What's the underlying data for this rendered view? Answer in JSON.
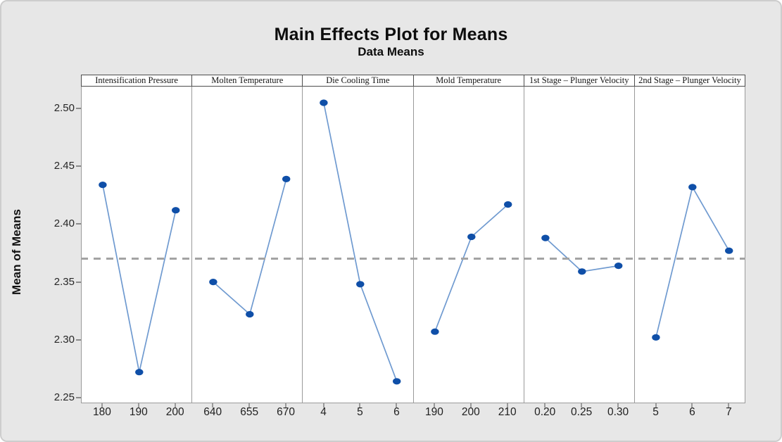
{
  "chart_data": {
    "type": "line",
    "title": "Main Effects Plot for Means",
    "subtitle": "Data Means",
    "ylabel": "Mean of Means",
    "ylim": [
      2.245,
      2.519
    ],
    "yticks": [
      {
        "label": "2.50",
        "value": 2.5
      },
      {
        "label": "2.45",
        "value": 2.45
      },
      {
        "label": "2.40",
        "value": 2.4
      },
      {
        "label": "2.35",
        "value": 2.35
      },
      {
        "label": "2.30",
        "value": 2.3
      },
      {
        "label": "2.25",
        "value": 2.25
      }
    ],
    "reference_mean": 2.3705,
    "legend": "none",
    "grid": false,
    "panels": [
      {
        "factor": "Intensification Pressure",
        "categories": [
          "180",
          "190",
          "200"
        ],
        "values": [
          2.434,
          2.272,
          2.412
        ]
      },
      {
        "factor": "Molten Temperature",
        "categories": [
          "640",
          "655",
          "670"
        ],
        "values": [
          2.35,
          2.322,
          2.439
        ]
      },
      {
        "factor": "Die Cooling Time",
        "categories": [
          "4",
          "5",
          "6"
        ],
        "values": [
          2.505,
          2.348,
          2.264
        ]
      },
      {
        "factor": "Mold Temperature",
        "categories": [
          "190",
          "200",
          "210"
        ],
        "values": [
          2.307,
          2.389,
          2.417
        ]
      },
      {
        "factor": "1st Stage – Plunger Velocity",
        "categories": [
          "0.20",
          "0.25",
          "0.30"
        ],
        "values": [
          2.388,
          2.359,
          2.364
        ]
      },
      {
        "factor": "2nd Stage – Plunger Velocity",
        "categories": [
          "5",
          "6",
          "7"
        ],
        "values": [
          2.302,
          2.432,
          2.377
        ]
      }
    ],
    "colors": {
      "marker": "#0f4fa8",
      "line": "#6f9ad0",
      "reference_line": "#a3a3a3",
      "background": "#e7e7e7",
      "plot_background": "#ffffff",
      "panel_border": "#9a9a9a",
      "header_border": "#4d4d4d"
    }
  }
}
